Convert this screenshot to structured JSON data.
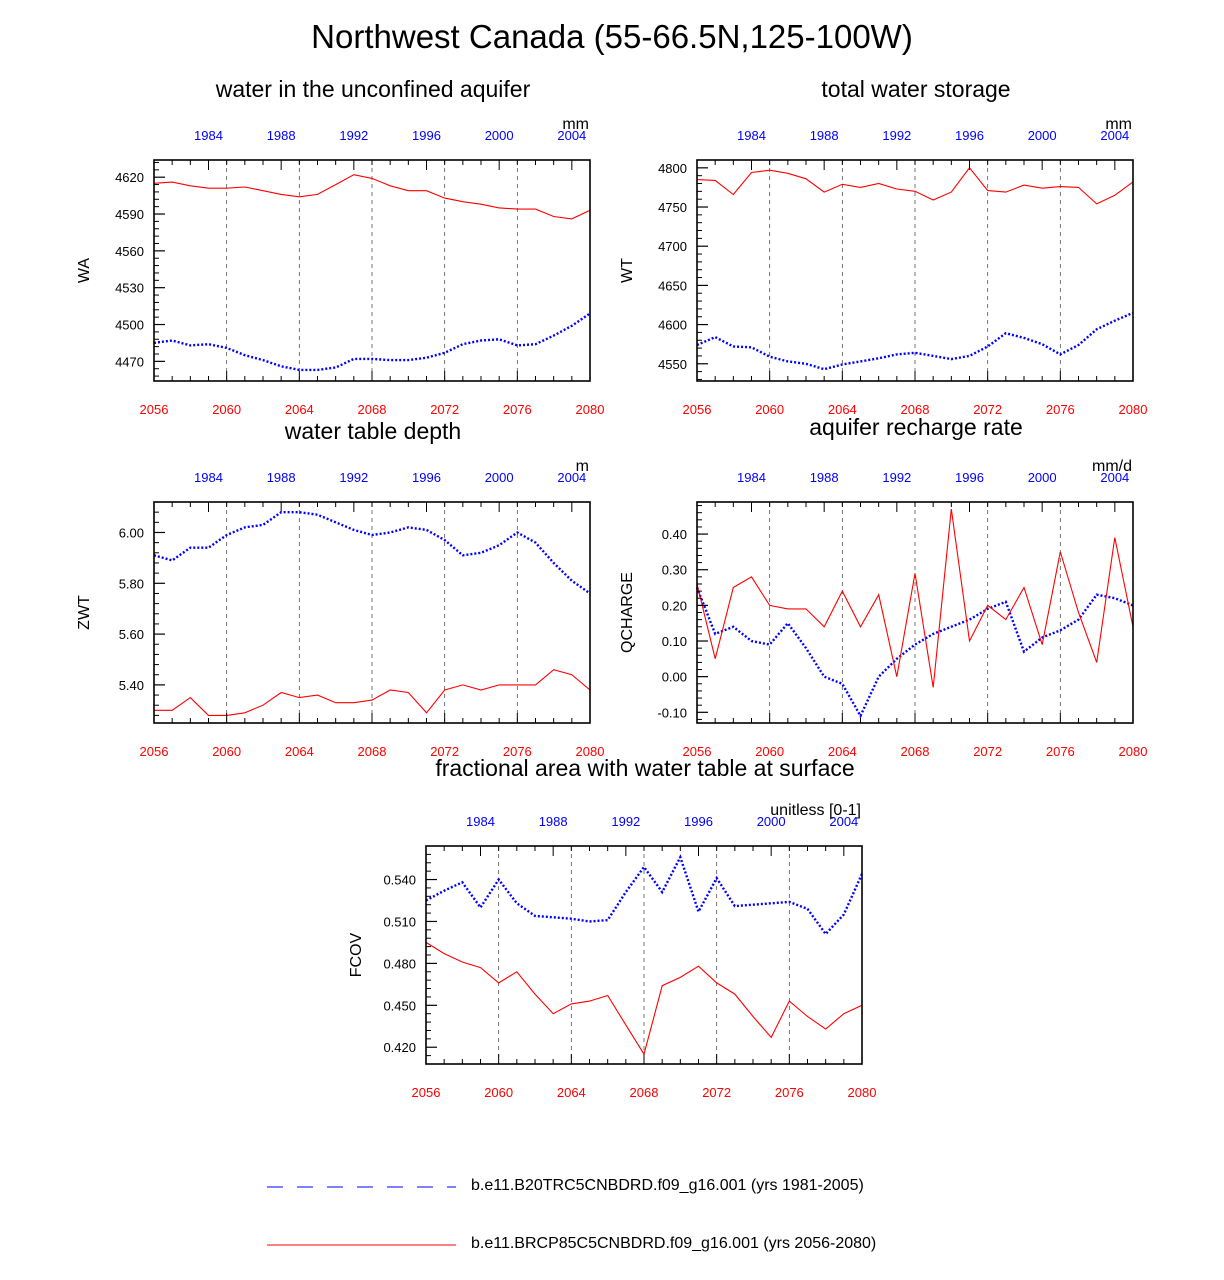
{
  "figure": {
    "title": "Northwest Canada (55-66.5N,125-100W)"
  },
  "legend": [
    {
      "label": "b.e11.B20TRC5CNBDRD.f09_g16.001 (yrs 1981-2005)",
      "color": "#0000ff",
      "style": "dashed"
    },
    {
      "label": "b.e11.BRCP85C5CNBDRD.f09_g16.001 (yrs 2056-2080)",
      "color": "#ff0000",
      "style": "solid"
    }
  ],
  "chart_data": [
    {
      "type": "line",
      "title": "water in the unconfined aquifer",
      "ylabel": "WA",
      "units": "mm",
      "ylim": [
        4454,
        4634
      ],
      "yticks": [
        4470,
        4500,
        4530,
        4560,
        4590,
        4620
      ],
      "ytick_labels": [
        "4470",
        "4500",
        "4530",
        "4560",
        "4590",
        "4620"
      ],
      "x_bottom_ticks": [
        "2056",
        "2060",
        "2064",
        "2068",
        "2072",
        "2076",
        "2080"
      ],
      "x_top_ticks": [
        "1984",
        "1988",
        "1992",
        "1996",
        "2000",
        "2004"
      ],
      "x_bottom_range": [
        2056,
        2080
      ],
      "x_top_range": [
        1981,
        2005
      ],
      "series": [
        {
          "name": "b.e11.B20TRC5CNBDRD.f09_g16.001 (yrs 1981-2005)",
          "color": "#0000ff",
          "style": "dotted",
          "values": [
            4485,
            4487,
            4483,
            4484,
            4481,
            4475,
            4471,
            4466,
            4463,
            4463,
            4465,
            4472,
            4472,
            4471,
            4471,
            4473,
            4477,
            4484,
            4487,
            4488,
            4483,
            4484,
            4491,
            4499,
            4509
          ]
        },
        {
          "name": "b.e11.BRCP85C5CNBDRD.f09_g16.001 (yrs 2056-2080)",
          "color": "#ff0000",
          "style": "solid",
          "values": [
            4615,
            4616,
            4613,
            4611,
            4611,
            4612,
            4609,
            4606,
            4604,
            4606,
            4614,
            4622,
            4619,
            4613,
            4609,
            4609,
            4603,
            4600,
            4598,
            4595,
            4594,
            4594,
            4588,
            4586,
            4593
          ]
        }
      ]
    },
    {
      "type": "line",
      "title": "total water storage",
      "ylabel": "WT",
      "units": "mm",
      "ylim": [
        4528,
        4810
      ],
      "yticks": [
        4550,
        4600,
        4650,
        4700,
        4750,
        4800
      ],
      "ytick_labels": [
        "4550",
        "4600",
        "4650",
        "4700",
        "4750",
        "4800"
      ],
      "x_bottom_ticks": [
        "2056",
        "2060",
        "2064",
        "2068",
        "2072",
        "2076",
        "2080"
      ],
      "x_top_ticks": [
        "1984",
        "1988",
        "1992",
        "1996",
        "2000",
        "2004"
      ],
      "x_bottom_range": [
        2056,
        2080
      ],
      "x_top_range": [
        1981,
        2005
      ],
      "series": [
        {
          "name": "b.e11.B20TRC5CNBDRD.f09_g16.001 (yrs 1981-2005)",
          "color": "#0000ff",
          "style": "dotted",
          "values": [
            4574,
            4584,
            4572,
            4571,
            4559,
            4553,
            4550,
            4543,
            4549,
            4553,
            4557,
            4562,
            4564,
            4560,
            4556,
            4560,
            4572,
            4589,
            4583,
            4575,
            4562,
            4574,
            4594,
            4605,
            4615
          ]
        },
        {
          "name": "b.e11.BRCP85C5CNBDRD.f09_g16.001 (yrs 2056-2080)",
          "color": "#ff0000",
          "style": "solid",
          "values": [
            4785,
            4784,
            4766,
            4794,
            4797,
            4793,
            4786,
            4769,
            4779,
            4775,
            4780,
            4773,
            4770,
            4759,
            4769,
            4800,
            4771,
            4769,
            4778,
            4774,
            4776,
            4775,
            4754,
            4765,
            4782
          ]
        }
      ]
    },
    {
      "type": "line",
      "title": "water table depth",
      "ylabel": "ZWT",
      "units": "m",
      "ylim": [
        5.25,
        6.12
      ],
      "yticks": [
        5.4,
        5.6,
        5.8,
        6.0
      ],
      "ytick_labels": [
        "5.40",
        "5.60",
        "5.80",
        "6.00"
      ],
      "x_bottom_ticks": [
        "2056",
        "2060",
        "2064",
        "2068",
        "2072",
        "2076",
        "2080"
      ],
      "x_top_ticks": [
        "1984",
        "1988",
        "1992",
        "1996",
        "2000",
        "2004"
      ],
      "x_bottom_range": [
        2056,
        2080
      ],
      "x_top_range": [
        1981,
        2005
      ],
      "series": [
        {
          "name": "b.e11.B20TRC5CNBDRD.f09_g16.001 (yrs 1981-2005)",
          "color": "#0000ff",
          "style": "dotted",
          "values": [
            5.91,
            5.89,
            5.94,
            5.94,
            5.99,
            6.02,
            6.03,
            6.08,
            6.08,
            6.07,
            6.04,
            6.01,
            5.99,
            6.0,
            6.02,
            6.01,
            5.97,
            5.91,
            5.92,
            5.95,
            6.0,
            5.96,
            5.88,
            5.81,
            5.76
          ]
        },
        {
          "name": "b.e11.BRCP85C5CNBDRD.f09_g16.001 (yrs 2056-2080)",
          "color": "#ff0000",
          "style": "solid",
          "values": [
            5.3,
            5.3,
            5.35,
            5.28,
            5.28,
            5.29,
            5.32,
            5.37,
            5.35,
            5.36,
            5.33,
            5.33,
            5.34,
            5.38,
            5.37,
            5.29,
            5.38,
            5.4,
            5.38,
            5.4,
            5.4,
            5.4,
            5.46,
            5.44,
            5.38
          ]
        }
      ]
    },
    {
      "type": "line",
      "title": "aquifer recharge rate",
      "ylabel": "QCHARGE",
      "units": "mm/d",
      "ylim": [
        -0.13,
        0.49
      ],
      "yticks": [
        -0.1,
        0.0,
        0.1,
        0.2,
        0.3,
        0.4
      ],
      "ytick_labels": [
        "-0.10",
        "0.00",
        "0.10",
        "0.20",
        "0.30",
        "0.40"
      ],
      "x_bottom_ticks": [
        "2056",
        "2060",
        "2064",
        "2068",
        "2072",
        "2076",
        "2080"
      ],
      "x_top_ticks": [
        "1984",
        "1988",
        "1992",
        "1996",
        "2000",
        "2004"
      ],
      "x_bottom_range": [
        2056,
        2080
      ],
      "x_top_range": [
        1981,
        2005
      ],
      "series": [
        {
          "name": "b.e11.B20TRC5CNBDRD.f09_g16.001 (yrs 1981-2005)",
          "color": "#0000ff",
          "style": "dotted",
          "values": [
            0.25,
            0.12,
            0.14,
            0.1,
            0.09,
            0.15,
            0.08,
            0.0,
            -0.02,
            -0.11,
            0.0,
            0.05,
            0.09,
            0.12,
            0.14,
            0.16,
            0.19,
            0.21,
            0.07,
            0.11,
            0.13,
            0.16,
            0.23,
            0.22,
            0.2
          ]
        },
        {
          "name": "b.e11.BRCP85C5CNBDRD.f09_g16.001 (yrs 2056-2080)",
          "color": "#ff0000",
          "style": "solid",
          "values": [
            0.26,
            0.05,
            0.25,
            0.28,
            0.2,
            0.19,
            0.19,
            0.14,
            0.24,
            0.14,
            0.23,
            0.0,
            0.29,
            -0.03,
            0.47,
            0.1,
            0.2,
            0.16,
            0.25,
            0.09,
            0.35,
            0.18,
            0.04,
            0.39,
            0.14
          ]
        }
      ]
    },
    {
      "type": "line",
      "title": "fractional area with water table at surface",
      "ylabel": "FCOV",
      "units": "unitless [0-1]",
      "ylim": [
        0.408,
        0.564
      ],
      "yticks": [
        0.42,
        0.45,
        0.48,
        0.51,
        0.54
      ],
      "ytick_labels": [
        "0.420",
        "0.450",
        "0.480",
        "0.510",
        "0.540"
      ],
      "x_bottom_ticks": [
        "2056",
        "2060",
        "2064",
        "2068",
        "2072",
        "2076",
        "2080"
      ],
      "x_top_ticks": [
        "1984",
        "1988",
        "1992",
        "1996",
        "2000",
        "2004"
      ],
      "x_bottom_range": [
        2056,
        2080
      ],
      "x_top_range": [
        1981,
        2005
      ],
      "series": [
        {
          "name": "b.e11.B20TRC5CNBDRD.f09_g16.001 (yrs 1981-2005)",
          "color": "#0000ff",
          "style": "dotted",
          "values": [
            0.525,
            0.532,
            0.538,
            0.52,
            0.54,
            0.523,
            0.514,
            0.513,
            0.512,
            0.51,
            0.511,
            0.531,
            0.549,
            0.531,
            0.556,
            0.517,
            0.541,
            0.521,
            0.522,
            0.523,
            0.524,
            0.519,
            0.501,
            0.515,
            0.544
          ]
        },
        {
          "name": "b.e11.BRCP85C5CNBDRD.f09_g16.001 (yrs 2056-2080)",
          "color": "#ff0000",
          "style": "solid",
          "values": [
            0.495,
            0.487,
            0.481,
            0.477,
            0.466,
            0.474,
            0.458,
            0.444,
            0.451,
            0.453,
            0.457,
            0.436,
            0.415,
            0.464,
            0.47,
            0.478,
            0.466,
            0.458,
            0.442,
            0.427,
            0.453,
            0.442,
            0.433,
            0.444,
            0.45
          ]
        }
      ]
    }
  ]
}
